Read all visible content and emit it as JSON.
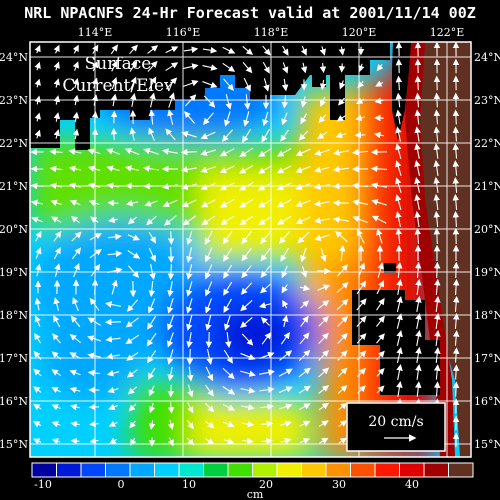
{
  "title": "NRL NPACNFS 24-Hr Forecast valid at 2001/11/14 00Z",
  "panel_label_line1": "Surface",
  "panel_label_line2": "Current/Elev",
  "scale_label": "20 cm/s",
  "colorbar_unit": "cm",
  "lon_labels": [
    "114°E",
    "116°E",
    "118°E",
    "120°E",
    "122°E"
  ],
  "lat_labels": [
    "24°N",
    "23°N",
    "22°N",
    "21°N",
    "20°N",
    "19°N",
    "18°N",
    "17°N",
    "16°N",
    "15°N"
  ],
  "colorbar_labels": [
    "-10",
    "0",
    "10",
    "20",
    "30",
    "40"
  ],
  "colorbar_colors": [
    "#0000a0",
    "#0018d8",
    "#0048ff",
    "#0078ff",
    "#00a8ff",
    "#00d0ff",
    "#00e8d0",
    "#00d040",
    "#40e000",
    "#b0f000",
    "#f0f000",
    "#ffc800",
    "#ff9000",
    "#ff5000",
    "#ff1800",
    "#e00000",
    "#a00000",
    "#603020"
  ],
  "colors": {
    "background": "#000000",
    "text": "#ffffff",
    "land": "#000000"
  }
}
